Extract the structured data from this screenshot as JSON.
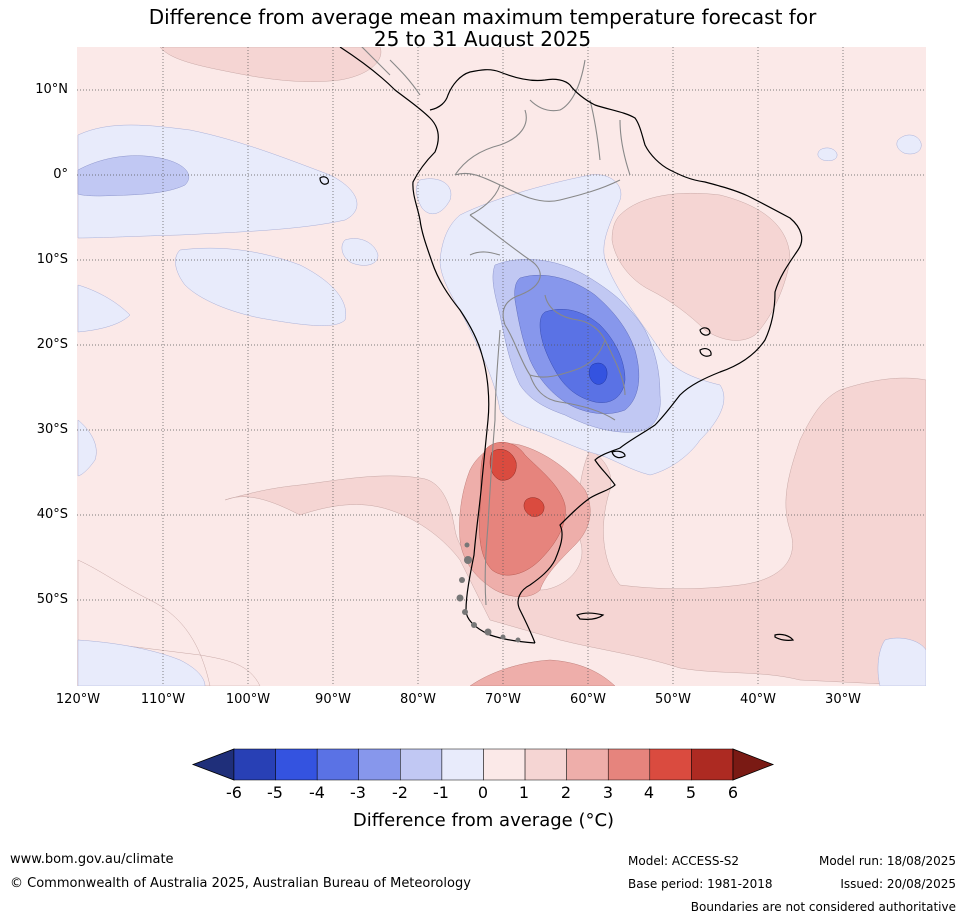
{
  "title": {
    "line1": "Difference from average mean maximum temperature forecast for",
    "line2": "25 to 31 August 2025"
  },
  "map": {
    "lat_labels": [
      "10°N",
      "0°",
      "10°S",
      "20°S",
      "30°S",
      "40°S",
      "50°S"
    ],
    "lon_labels": [
      "120°W",
      "110°W",
      "100°W",
      "90°W",
      "80°W",
      "70°W",
      "60°W",
      "50°W",
      "40°W",
      "30°W"
    ],
    "palette": {
      "c_m6": "#1f2f7a",
      "c_m5": "#2840b5",
      "c_m4": "#3453e0",
      "c_m3": "#5a72e5",
      "c_m2": "#8797ec",
      "c_m1": "#c1c8f3",
      "c_0": "#e8ebfb",
      "c_p0": "#fbe9e8",
      "c_p1": "#f5d5d3",
      "c_p2": "#eeaeaa",
      "c_p3": "#e6847d",
      "c_p4": "#da4b3f",
      "c_p5": "#ad2a22",
      "c_p6": "#7a1a14"
    }
  },
  "colorbar": {
    "ticks": [
      "-6",
      "-5",
      "-4",
      "-3",
      "-2",
      "-1",
      "0",
      "1",
      "2",
      "3",
      "4",
      "5",
      "6"
    ],
    "title": "Difference from average (°C)",
    "colors": [
      "#1f2f7a",
      "#2840b5",
      "#3453e0",
      "#5a72e5",
      "#8797ec",
      "#c1c8f3",
      "#e8ebfb",
      "#fbe9e8",
      "#f5d5d3",
      "#eeaeaa",
      "#e6847d",
      "#da4b3f",
      "#ad2a22",
      "#7a1a14"
    ]
  },
  "footer": {
    "url": "www.bom.gov.au/climate",
    "copyright": "© Commonwealth of Australia 2025, Australian Bureau of Meteorology",
    "model": "Model: ACCESS-S2",
    "base_period": "Base period: 1981-2018",
    "model_run": "Model run: 18/08/2025",
    "issued": "Issued: 20/08/2025",
    "disclaimer": "Boundaries are not considered authoritative"
  }
}
